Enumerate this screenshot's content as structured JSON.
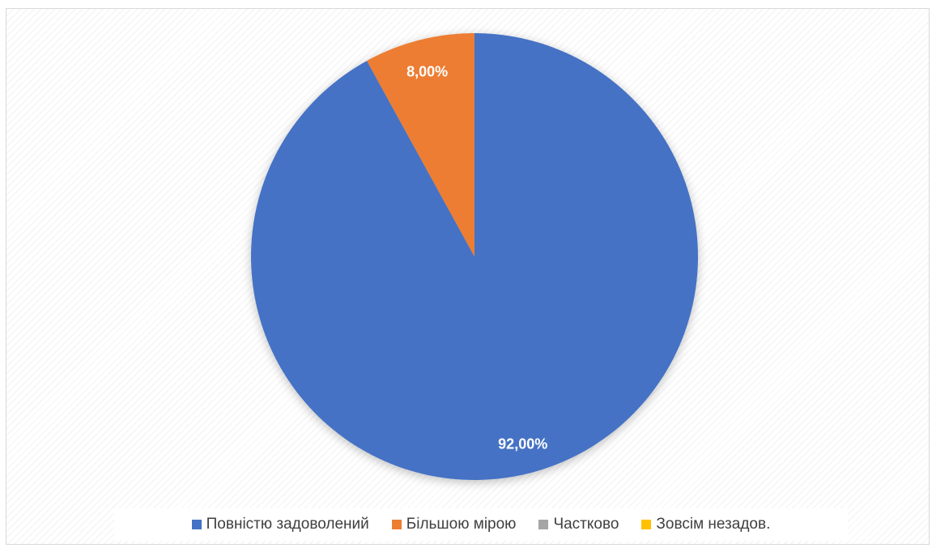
{
  "chart_data": {
    "type": "pie",
    "categories": [
      "Повністю задоволений",
      "Більшою мірою",
      "Частково",
      "Зовсім незадов."
    ],
    "values": [
      92,
      8,
      0,
      0
    ],
    "data_labels": [
      "92,00%",
      "8,00%",
      "",
      ""
    ],
    "colors": [
      "#4472C4",
      "#ED7D31",
      "#A5A5A5",
      "#FFC000"
    ],
    "title": "",
    "legend_position": "bottom",
    "start_angle_deg": 0,
    "direction": "clockwise"
  },
  "legend": {
    "items": [
      {
        "label": "Повністю задоволений",
        "color": "#4472C4"
      },
      {
        "label": "Більшою мірою",
        "color": "#ED7D31"
      },
      {
        "label": "Частково",
        "color": "#A5A5A5"
      },
      {
        "label": "Зовсім незадов.",
        "color": "#FFC000"
      }
    ]
  }
}
